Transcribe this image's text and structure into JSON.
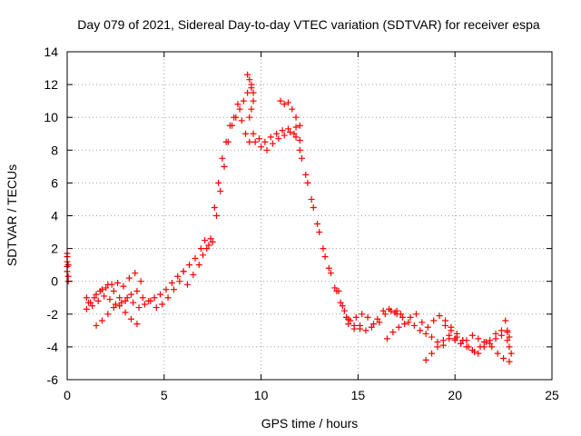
{
  "chart_data": {
    "type": "scatter",
    "title": "Day 079 of 2021, Sidereal Day-to-day VTEC variation (SDTVAR) for receiver espa",
    "xlabel": "GPS time / hours",
    "ylabel": "SDTVAR / TECUs",
    "xlim": [
      0,
      25
    ],
    "ylim": [
      -6,
      14
    ],
    "xticks": [
      0,
      5,
      10,
      15,
      20,
      25
    ],
    "yticks": [
      -6,
      -4,
      -2,
      0,
      2,
      4,
      6,
      8,
      10,
      12,
      14
    ],
    "grid": true,
    "marker": "+",
    "color": "#ff0000",
    "series": [
      {
        "name": "SDTVAR",
        "x": [
          0.0,
          0.0,
          0.0,
          0.0,
          0.0,
          0.05,
          0.05,
          0.05,
          1.0,
          1.2,
          1.5,
          1.8,
          2.1,
          2.4,
          2.7,
          3.0,
          3.3,
          3.6,
          3.9,
          4.2,
          4.5,
          4.8,
          5.1,
          5.4,
          5.7,
          6.0,
          1.0,
          1.3,
          1.6,
          1.9,
          2.2,
          2.5,
          2.8,
          3.1,
          3.4,
          3.7,
          4.0,
          4.3,
          4.6,
          4.9,
          5.2,
          5.5,
          5.8,
          1.5,
          1.8,
          2.1,
          2.4,
          2.7,
          3.0,
          3.3,
          3.6,
          1.1,
          1.4,
          1.7,
          2.0,
          2.3,
          2.6,
          2.9,
          3.2,
          3.5,
          3.8,
          6.0,
          6.3,
          6.6,
          6.9,
          7.1,
          7.3,
          7.5,
          7.7,
          7.9,
          8.1,
          8.3,
          8.5,
          8.7,
          8.9,
          9.1,
          9.3,
          9.5,
          6.2,
          6.5,
          6.8,
          7.0,
          7.2,
          7.4,
          7.6,
          7.8,
          8.0,
          8.2,
          8.4,
          8.6,
          8.8,
          9.0,
          9.2,
          9.4,
          9.3,
          9.4,
          9.5,
          9.6,
          9.6,
          9.5,
          9.4,
          9.6,
          9.9,
          10.2,
          10.5,
          10.8,
          11.1,
          11.4,
          11.7,
          12.0,
          9.7,
          10.0,
          10.3,
          10.6,
          10.9,
          11.2,
          11.5,
          11.8,
          11.0,
          11.2,
          11.4,
          11.6,
          11.8,
          12.0,
          11.8,
          12.1,
          12.4,
          12.7,
          13.0,
          13.3,
          13.6,
          13.9,
          14.2,
          14.5,
          14.8,
          15.1,
          12.0,
          12.3,
          12.6,
          12.9,
          13.2,
          13.5,
          13.8,
          14.1,
          14.4,
          14.0,
          14.3,
          14.6,
          14.9,
          15.2,
          15.5,
          15.8,
          16.1,
          16.4,
          16.7,
          17.0,
          14.5,
          14.8,
          15.1,
          15.4,
          15.7,
          16.0,
          16.3,
          16.6,
          16.9,
          17.2,
          16.5,
          16.8,
          17.1,
          17.4,
          17.7,
          18.0,
          18.3,
          18.6,
          18.9,
          19.2,
          19.5,
          19.8,
          20.1,
          20.4,
          17.0,
          17.3,
          17.6,
          17.9,
          18.2,
          18.5,
          18.8,
          19.1,
          19.4,
          19.7,
          20.0,
          20.3,
          20.6,
          20.9,
          21.2,
          21.5,
          21.8,
          22.1,
          22.4,
          22.7,
          18.5,
          18.8,
          19.1,
          19.4,
          19.7,
          20.0,
          20.3,
          20.6,
          20.9,
          21.2,
          21.5,
          21.8,
          22.1,
          22.4,
          22.7,
          19.5,
          19.8,
          20.1,
          20.4,
          20.7,
          21.0,
          21.3,
          21.6,
          21.9,
          22.2,
          22.5,
          22.8,
          22.6,
          22.7,
          22.8,
          22.8,
          22.9
        ],
        "y": [
          1.7,
          1.5,
          1.2,
          0.9,
          0.6,
          0.3,
          1.0,
          0.0,
          -1.0,
          -1.3,
          -0.8,
          -0.5,
          -0.2,
          -0.6,
          -1.0,
          -1.2,
          -0.8,
          -0.6,
          -1.0,
          -1.2,
          -1.0,
          -0.8,
          -0.5,
          -0.1,
          0.3,
          0.6,
          -1.7,
          -1.5,
          -1.2,
          -0.9,
          -1.1,
          -1.4,
          -1.3,
          -1.0,
          -1.3,
          -1.6,
          -1.4,
          -1.2,
          -1.6,
          -1.4,
          -1.0,
          -0.5,
          0.0,
          -2.7,
          -2.4,
          -2.0,
          -1.6,
          -1.5,
          -1.9,
          -2.3,
          -2.6,
          -1.3,
          -1.0,
          -0.6,
          -0.4,
          -0.2,
          -0.1,
          -0.3,
          0.2,
          0.5,
          0.0,
          0.6,
          1.0,
          1.4,
          2.0,
          2.5,
          2.2,
          2.4,
          4.0,
          5.5,
          7.0,
          8.5,
          9.5,
          10.0,
          10.5,
          11.0,
          11.5,
          11.8,
          -0.2,
          0.4,
          1.0,
          1.6,
          2.0,
          2.6,
          4.5,
          6.0,
          7.5,
          8.5,
          9.5,
          10.0,
          10.8,
          9.8,
          9.0,
          8.5,
          12.6,
          12.3,
          12.0,
          11.5,
          11.0,
          10.5,
          10.0,
          9.0,
          8.7,
          8.5,
          8.8,
          9.0,
          9.2,
          9.3,
          9.0,
          8.6,
          8.5,
          8.2,
          8.0,
          8.4,
          8.7,
          8.9,
          9.1,
          9.4,
          11.0,
          10.8,
          10.9,
          10.5,
          10.0,
          9.5,
          8.8,
          7.5,
          6.0,
          4.5,
          3.0,
          1.5,
          0.5,
          -0.6,
          -1.5,
          -2.3,
          -2.7,
          -2.9,
          8.0,
          6.5,
          5.0,
          3.5,
          2.0,
          0.8,
          -0.4,
          -1.3,
          -2.2,
          -0.6,
          -1.8,
          -2.4,
          -2.2,
          -2.0,
          -2.2,
          -2.6,
          -2.5,
          -2.0,
          -1.8,
          -1.8,
          -2.6,
          -2.9,
          -2.7,
          -3.0,
          -2.8,
          -2.3,
          -1.8,
          -1.7,
          -1.9,
          -2.0,
          -3.5,
          -3.1,
          -2.8,
          -2.6,
          -2.2,
          -2.0,
          -2.5,
          -2.8,
          -2.4,
          -2.1,
          -2.7,
          -3.0,
          -3.4,
          -3.6,
          -2.0,
          -2.2,
          -2.5,
          -2.7,
          -3.0,
          -3.2,
          -3.4,
          -3.7,
          -3.9,
          -3.5,
          -3.6,
          -3.8,
          -3.6,
          -3.3,
          -3.5,
          -3.7,
          -3.8,
          -3.5,
          -3.3,
          -3.6,
          -4.8,
          -4.4,
          -4.0,
          -3.6,
          -3.3,
          -3.5,
          -3.8,
          -4.0,
          -4.2,
          -4.4,
          -4.0,
          -3.6,
          -3.2,
          -3.0,
          -3.1,
          -2.4,
          -2.8,
          -3.2,
          -3.6,
          -4.0,
          -4.3,
          -4.0,
          -3.7,
          -4.0,
          -4.4,
          -4.7,
          -4.9,
          -2.4,
          -3.0,
          -3.4,
          -4.0,
          -4.4
        ]
      }
    ]
  }
}
